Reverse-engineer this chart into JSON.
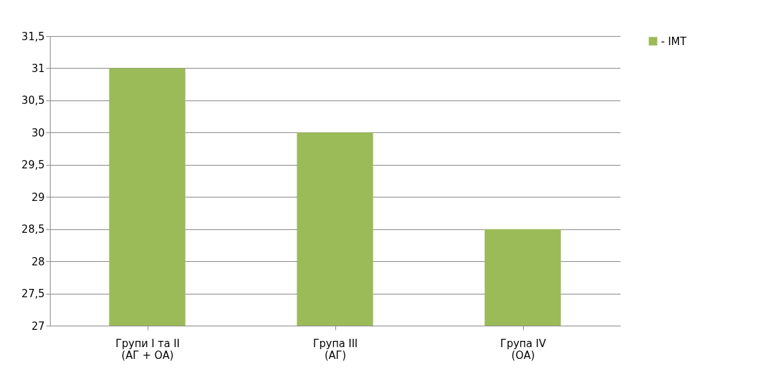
{
  "chart_data": {
    "type": "bar",
    "categories": [
      "Групи І та ІІ\n(АГ + ОА)",
      "Група ІІІ\n(АГ)",
      "Група IV\n(ОА)"
    ],
    "series": [
      {
        "name": "-  ІМТ",
        "color": "#9bbb59",
        "values": [
          31,
          30,
          28.5
        ]
      }
    ],
    "ylim": [
      27,
      31.5
    ],
    "yticks": [
      27,
      {
        "value": 27.5,
        "label": "27,5"
      },
      28,
      {
        "value": 28.5,
        "label": "28,5"
      },
      29,
      {
        "value": 29.5,
        "label": "29,5"
      },
      30,
      {
        "value": 30.5,
        "label": "30,5"
      },
      31,
      {
        "value": 31.5,
        "label": "31,5"
      }
    ],
    "grid": "y",
    "legend": "right",
    "marker": "square"
  }
}
